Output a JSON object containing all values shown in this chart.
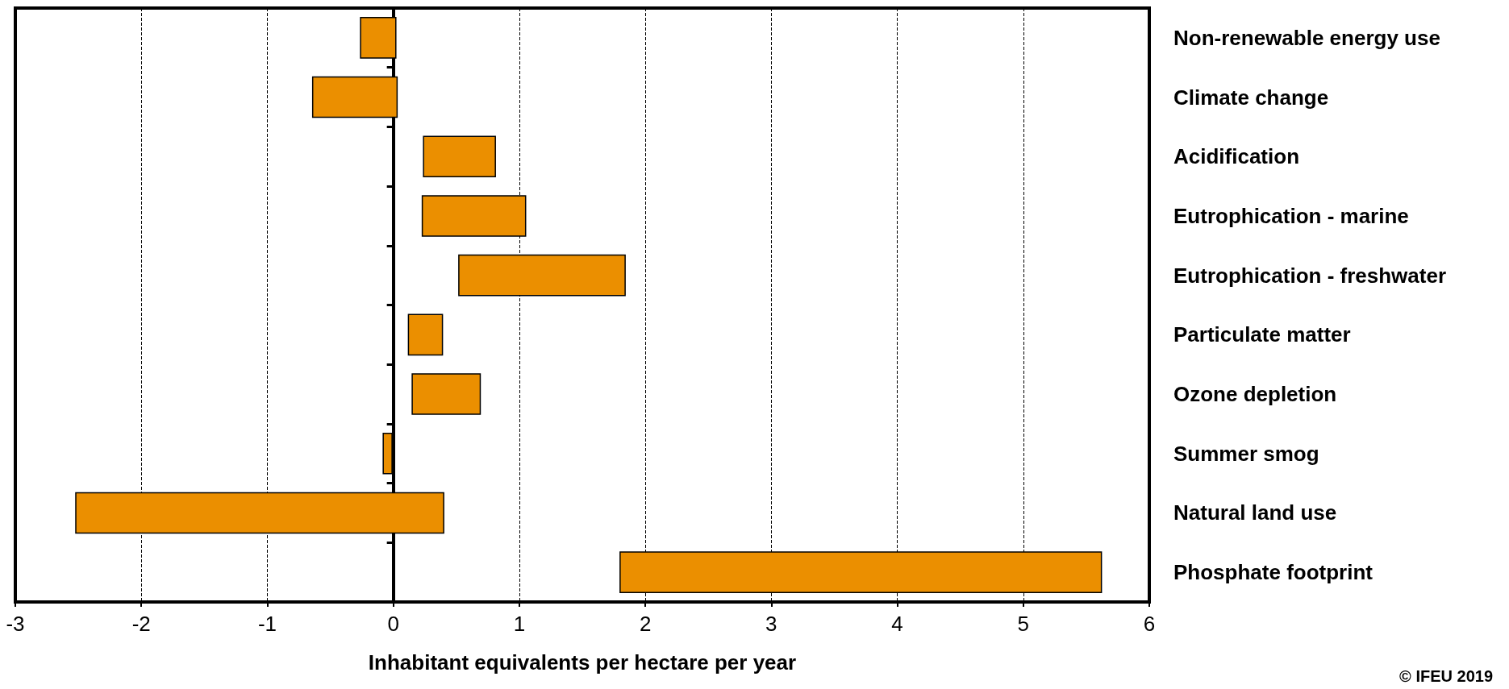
{
  "chart_data": {
    "type": "bar",
    "orientation": "horizontal",
    "xlabel": "Inhabitant equivalents per hectare per year",
    "categories": [
      "Non-renewable energy use",
      "Climate change",
      "Acidification",
      "Eutrophication - marine",
      "Eutrophication - freshwater",
      "Particulate matter",
      "Ozone depletion",
      "Summer smog",
      "Natural land use",
      "Phosphate footprint"
    ],
    "base": [
      -0.26,
      -0.64,
      0.24,
      0.23,
      0.52,
      0.12,
      0.15,
      -0.08,
      -2.52,
      1.8
    ],
    "values": [
      0.28,
      0.67,
      0.57,
      0.82,
      1.32,
      0.27,
      0.54,
      0.07,
      2.92,
      3.82
    ],
    "color": "#eb8f00",
    "xlim": [
      -3,
      6
    ],
    "xticks": [
      -3,
      -2,
      -1,
      0,
      1,
      2,
      3,
      4,
      5,
      6
    ],
    "grid": "x",
    "annotations": [
      "© IFEU 2019"
    ]
  }
}
